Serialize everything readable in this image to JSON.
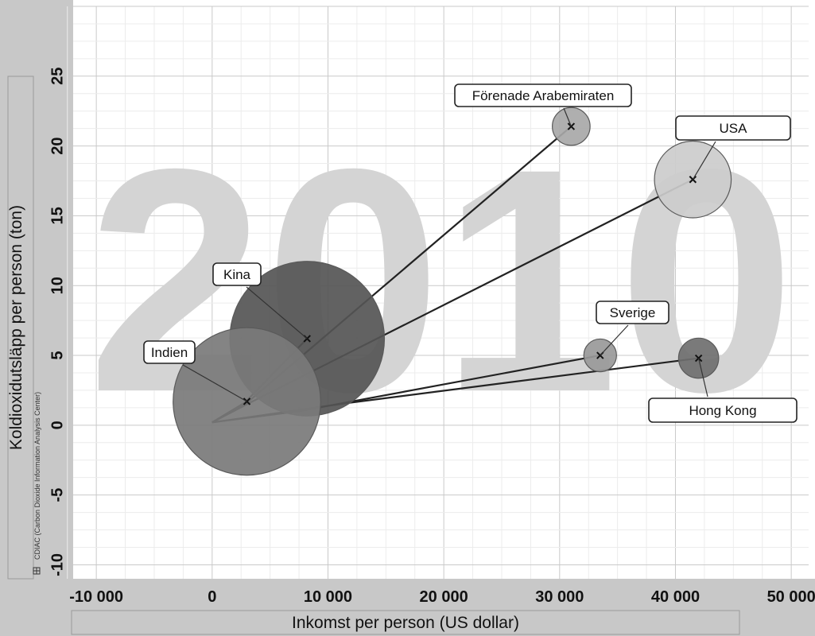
{
  "chart_data": {
    "type": "scatter",
    "year_label": "2010",
    "xlabel": "Inkomst per person (US dollar)",
    "ylabel": "Koldioxidutsläpp per person (ton)",
    "source": "CDIAC (Carbon Dioxide Information Analysis Center)",
    "xlim": [
      -12000,
      51500
    ],
    "ylim": [
      -11,
      30
    ],
    "x_ticks": [
      -10000,
      0,
      10000,
      20000,
      30000,
      40000,
      50000
    ],
    "x_tick_labels": [
      "-10 000",
      "0",
      "10 000",
      "20 000",
      "30 000",
      "40 000",
      "50 000"
    ],
    "y_ticks": [
      -10,
      -5,
      0,
      5,
      10,
      15,
      20,
      25
    ],
    "y_tick_labels": [
      "-10",
      "-5",
      "0",
      "5",
      "10",
      "15",
      "20",
      "25"
    ],
    "grid": true,
    "trail_origin": {
      "x": 0,
      "y": 0.2
    },
    "points": [
      {
        "name": "Förenade Arabemiraten",
        "x": 31000,
        "y": 21.4,
        "size": 0.08,
        "color": "#a8a8a8",
        "trail": [
          [
            3000,
            1.6
          ],
          [
            31000,
            21.4
          ]
        ]
      },
      {
        "name": "USA",
        "x": 41500,
        "y": 17.6,
        "size": 0.33,
        "color": "#cccccc",
        "trail": [
          [
            3000,
            1.5
          ],
          [
            41500,
            17.6
          ]
        ]
      },
      {
        "name": "Kina",
        "x": 8200,
        "y": 6.2,
        "size": 1.34,
        "color": "#555555",
        "trail": [
          [
            2800,
            1.6
          ],
          [
            8200,
            6.2
          ]
        ]
      },
      {
        "name": "Indien",
        "x": 3000,
        "y": 1.7,
        "size": 1.22,
        "color": "#7a7a7a",
        "trail": [
          [
            3000,
            1.7
          ]
        ]
      },
      {
        "name": "Sverige",
        "x": 33500,
        "y": 5.0,
        "size": 0.06,
        "color": "#999999",
        "trail": [
          [
            7500,
            1.0
          ],
          [
            33500,
            5.0
          ]
        ]
      },
      {
        "name": "Hong Kong",
        "x": 42000,
        "y": 4.8,
        "size": 0.09,
        "color": "#6f6f6f",
        "trail": [
          [
            11800,
            1.6
          ],
          [
            42000,
            4.8
          ]
        ]
      }
    ]
  }
}
